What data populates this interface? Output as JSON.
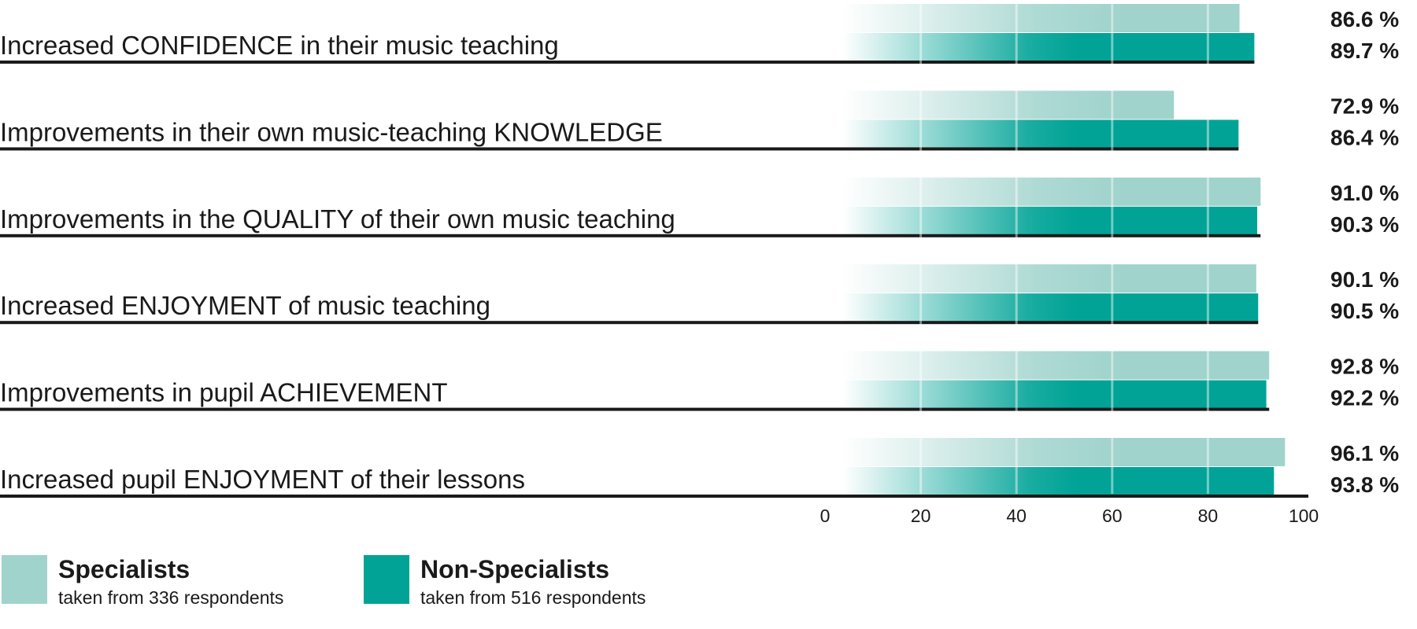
{
  "chart_data": {
    "type": "bar",
    "orientation": "horizontal",
    "categories": [
      "Increased CONFIDENCE in their music teaching",
      "Improvements in their own music-teaching KNOWLEDGE",
      "Improvements in the QUALITY of their own music teaching",
      "Increased ENJOYMENT of music teaching",
      "Improvements in pupil ACHIEVEMENT",
      "Increased pupil ENJOYMENT of their lessons"
    ],
    "series": [
      {
        "name": "Specialists",
        "note": "taken from 336 respondents",
        "color": "#9fd3cc",
        "values": [
          86.6,
          72.9,
          91.0,
          90.1,
          92.8,
          96.1
        ],
        "value_labels": [
          "86.6 %",
          "72.9 %",
          "91.0 %",
          "90.1 %",
          "92.8 %",
          "96.1 %"
        ]
      },
      {
        "name": "Non-Specialists",
        "note": "taken from 516 respondents",
        "color": "#00a396",
        "values": [
          89.7,
          86.4,
          90.3,
          90.5,
          92.2,
          93.8
        ],
        "value_labels": [
          "89.7 %",
          "86.4 %",
          "90.3 %",
          "90.5 %",
          "92.2 %",
          "93.8 %"
        ]
      }
    ],
    "xlim": [
      0,
      100
    ],
    "xticks": [
      0,
      20,
      40,
      60,
      80,
      100
    ],
    "xtick_labels": [
      "0",
      "20",
      "40",
      "60",
      "80",
      "100"
    ],
    "grid": true,
    "legend_position": "bottom-left",
    "title": "",
    "xlabel": "",
    "ylabel": ""
  }
}
